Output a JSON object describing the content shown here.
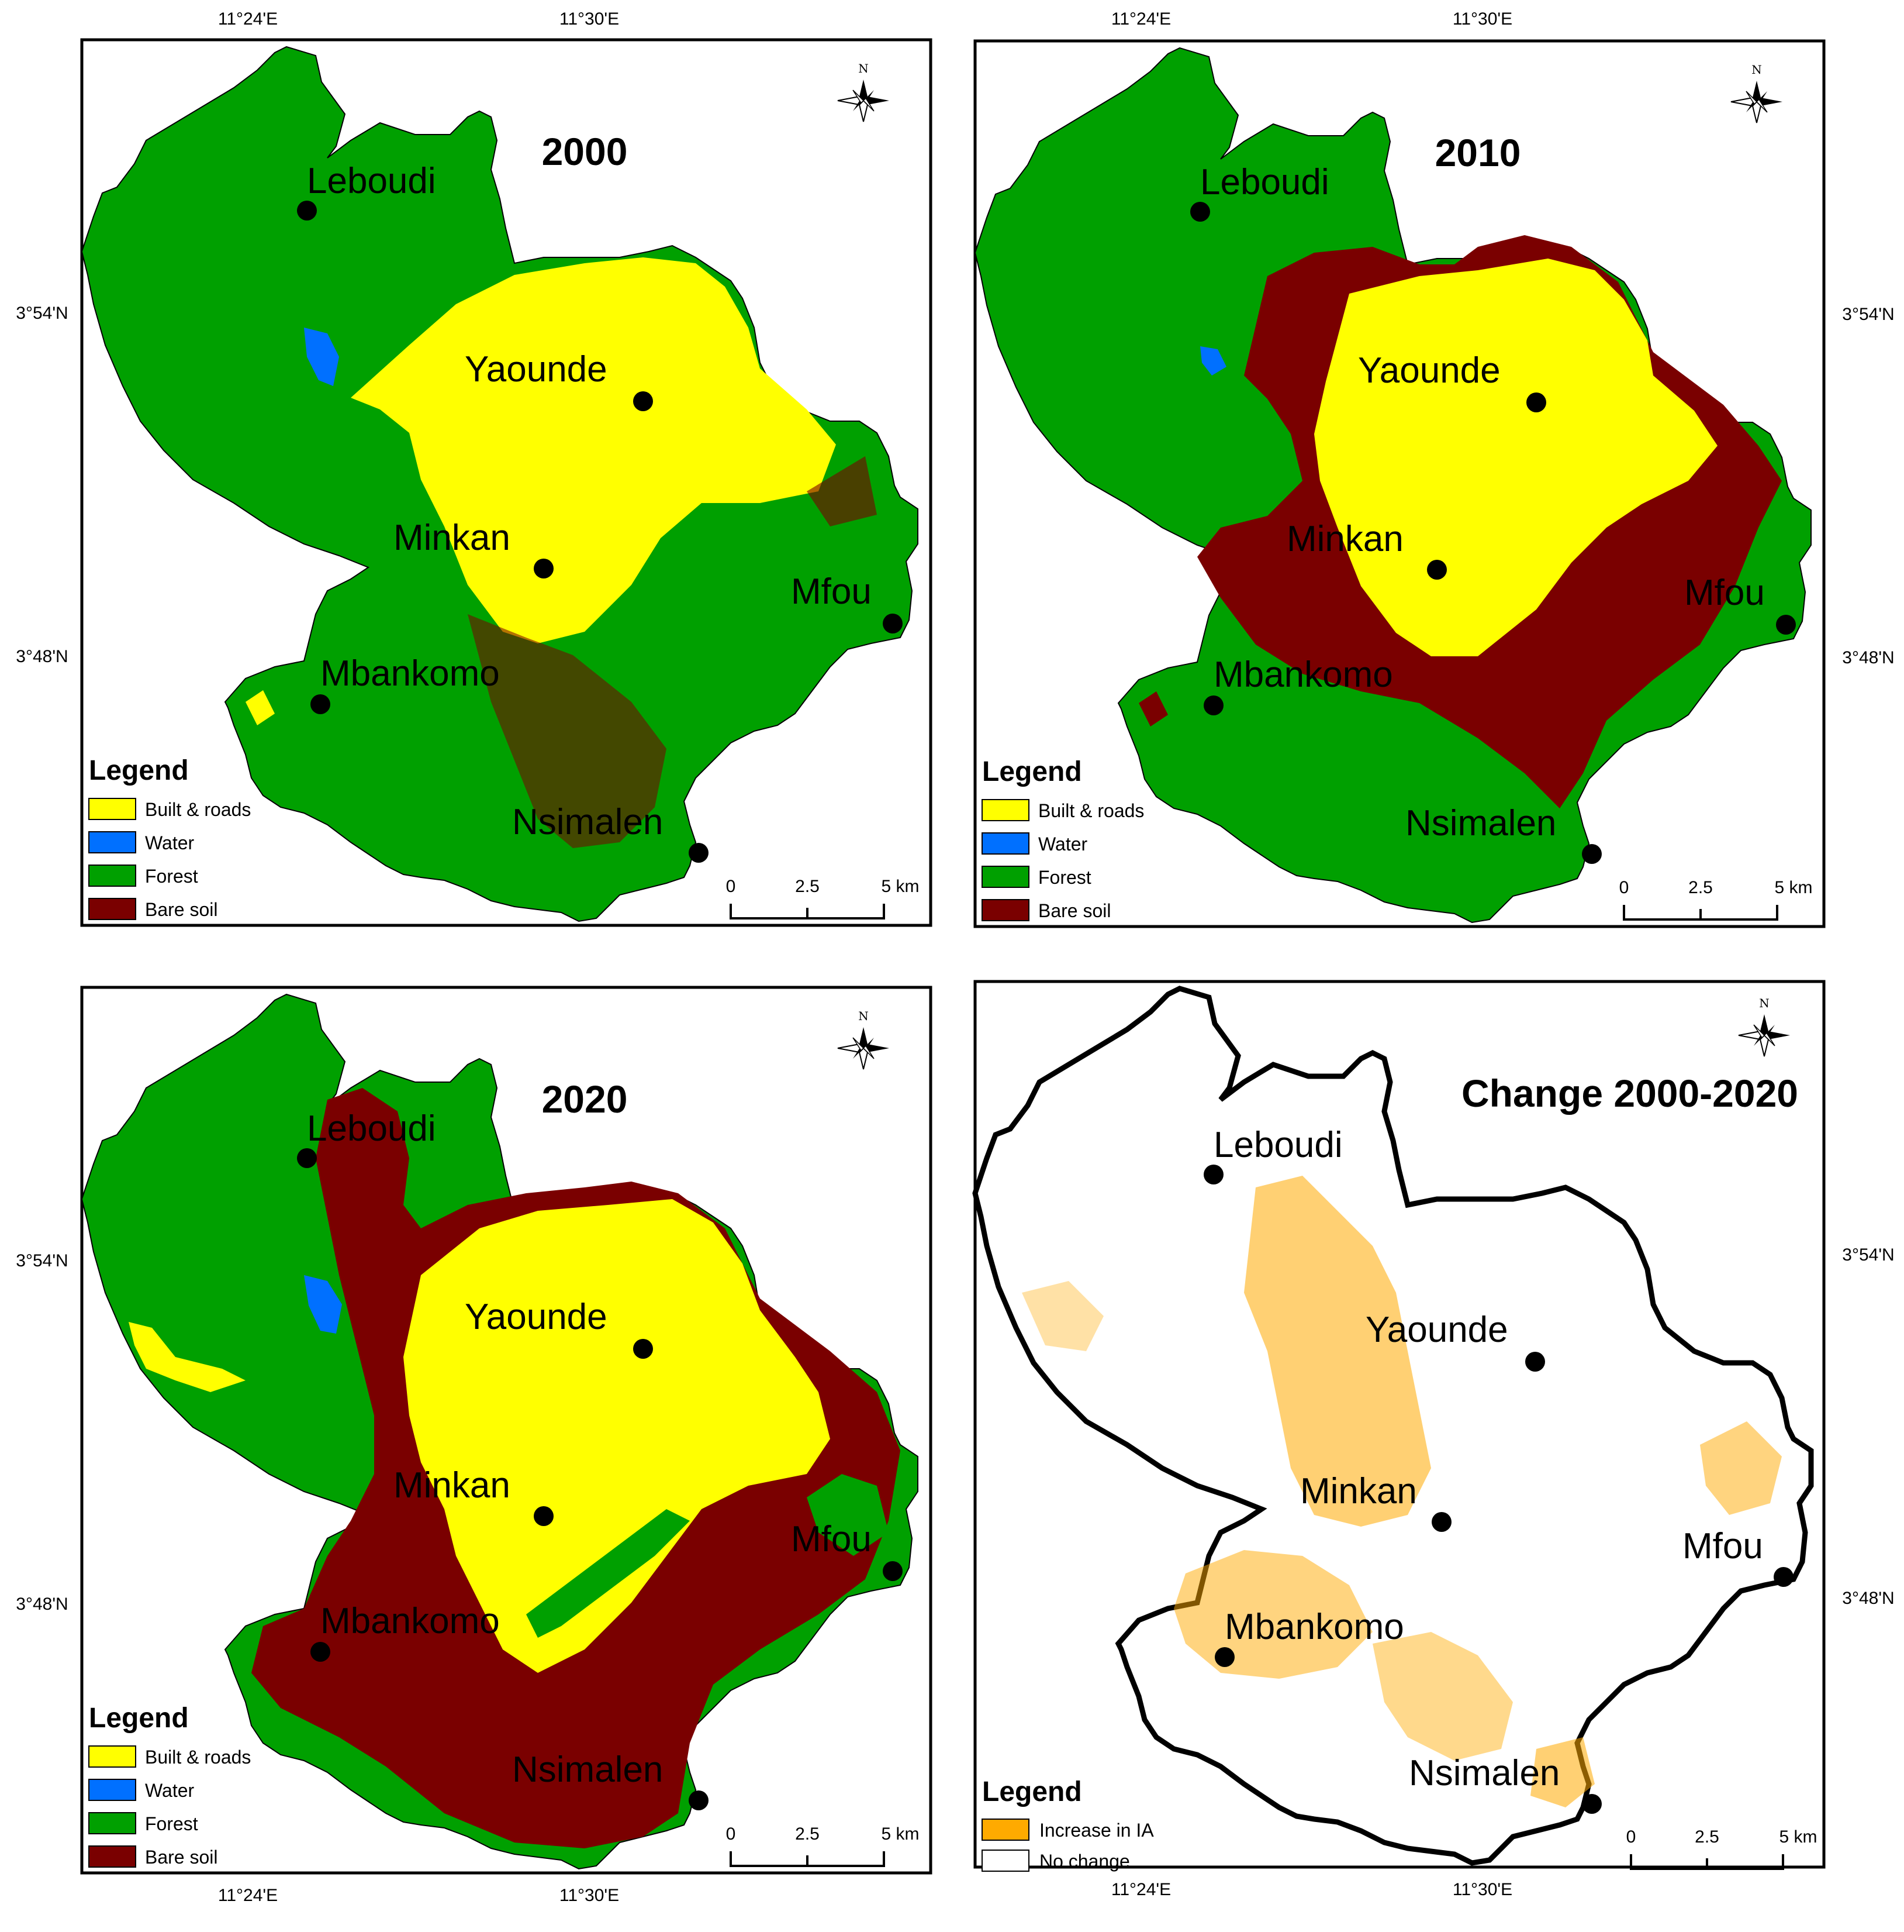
{
  "coordinates": {
    "lon_left": "11°24'E",
    "lon_right": "11°30'E",
    "lat_upper": "3°54'N",
    "lat_lower": "3°48'N"
  },
  "north_label": "N",
  "cities": {
    "leboudi": "Leboudi",
    "yaounde": "Yaounde",
    "minkan": "Minkan",
    "mfou": "Mfou",
    "mbankomo": "Mbankomo",
    "nsimalen": "Nsimalen"
  },
  "scale_bar": {
    "zero": "0",
    "mid": "2.5",
    "end": "5 km"
  },
  "legend_title": "Legend",
  "landcover_legend": [
    {
      "label": "Built & roads",
      "color": "#ffff00"
    },
    {
      "label": "Water",
      "color": "#0070ff"
    },
    {
      "label": "Forest",
      "color": "#00a000"
    },
    {
      "label": "Bare soil",
      "color": "#7a0000"
    }
  ],
  "change_legend": [
    {
      "label": "Increase in IA",
      "color": "#ffaa00"
    },
    {
      "label": "No change",
      "color": "#ffffff"
    }
  ],
  "panels": [
    {
      "title": "2000"
    },
    {
      "title": "2010"
    },
    {
      "title": "2020"
    },
    {
      "title": "Change 2000-2020"
    }
  ]
}
